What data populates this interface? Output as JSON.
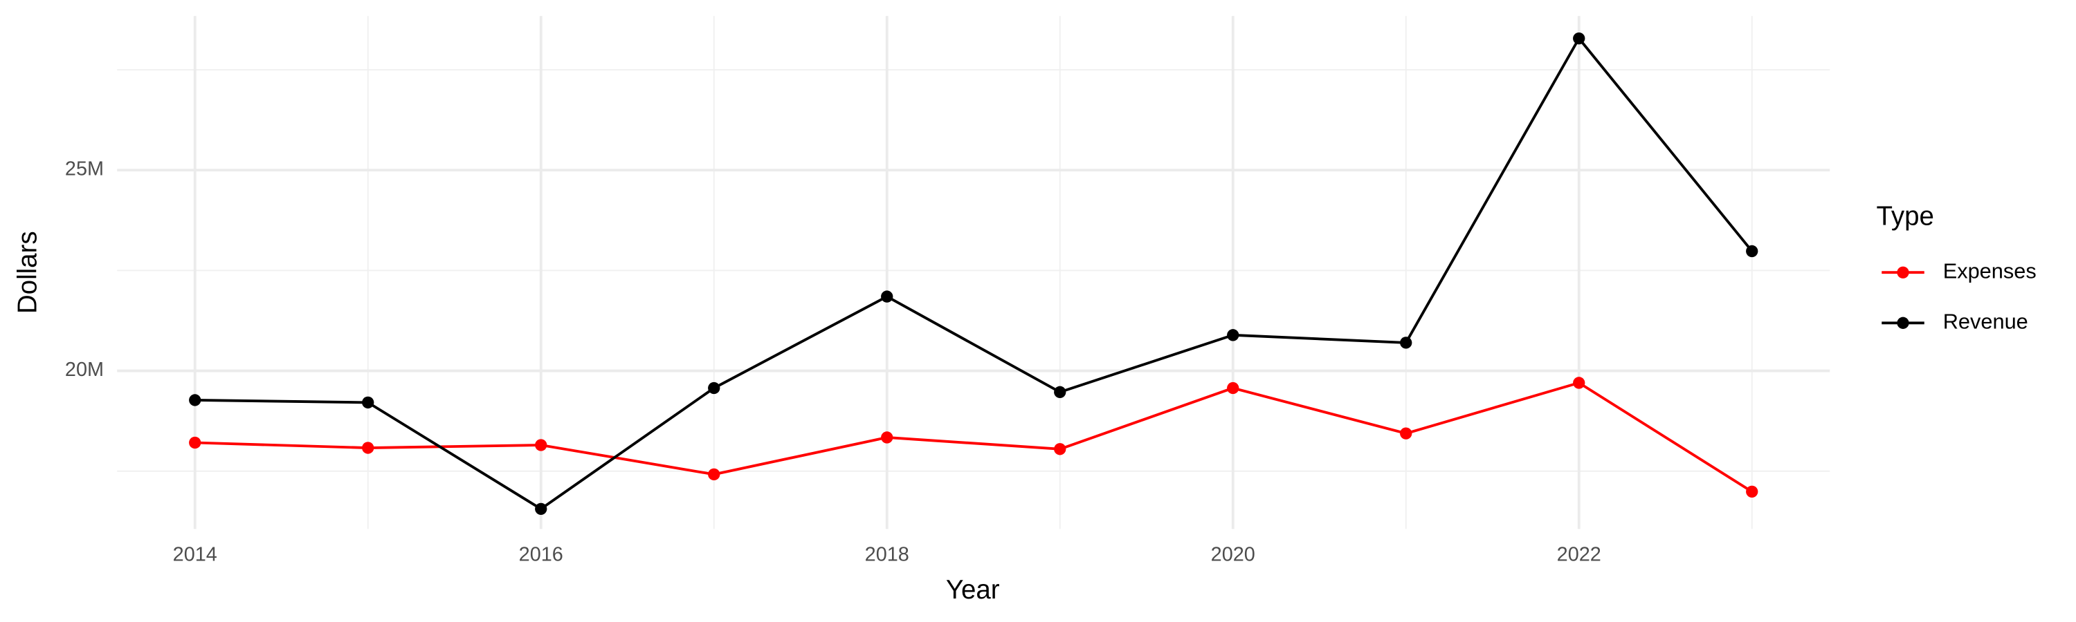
{
  "chart_data": {
    "type": "line",
    "x_label": "Year",
    "y_label": "Dollars",
    "legend_title": "Type",
    "legend": "right",
    "grid": true,
    "x": [
      2014,
      2015,
      2016,
      2017,
      2018,
      2019,
      2020,
      2021,
      2022,
      2023
    ],
    "xlim": [
      2013.55,
      2023.45
    ],
    "xticks": [
      2014,
      2016,
      2018,
      2020,
      2022
    ],
    "xgrid_minor": [
      2015,
      2017,
      2019,
      2021,
      2023
    ],
    "ylim": [
      16060000,
      28840000
    ],
    "yticks": [
      {
        "value": 20000000,
        "label": "20M"
      },
      {
        "value": 25000000,
        "label": "25M"
      }
    ],
    "ygrid_minor": [
      17500000,
      22500000,
      27500000
    ],
    "series": [
      {
        "name": "Expenses",
        "color": "#ff0000",
        "values": [
          18210000,
          18080000,
          18150000,
          17420000,
          18340000,
          18050000,
          19570000,
          18440000,
          19700000,
          16990000
        ]
      },
      {
        "name": "Revenue",
        "color": "#000000",
        "values": [
          19270000,
          19210000,
          16560000,
          19570000,
          21850000,
          19470000,
          20890000,
          20700000,
          28280000,
          22980000
        ]
      }
    ]
  }
}
